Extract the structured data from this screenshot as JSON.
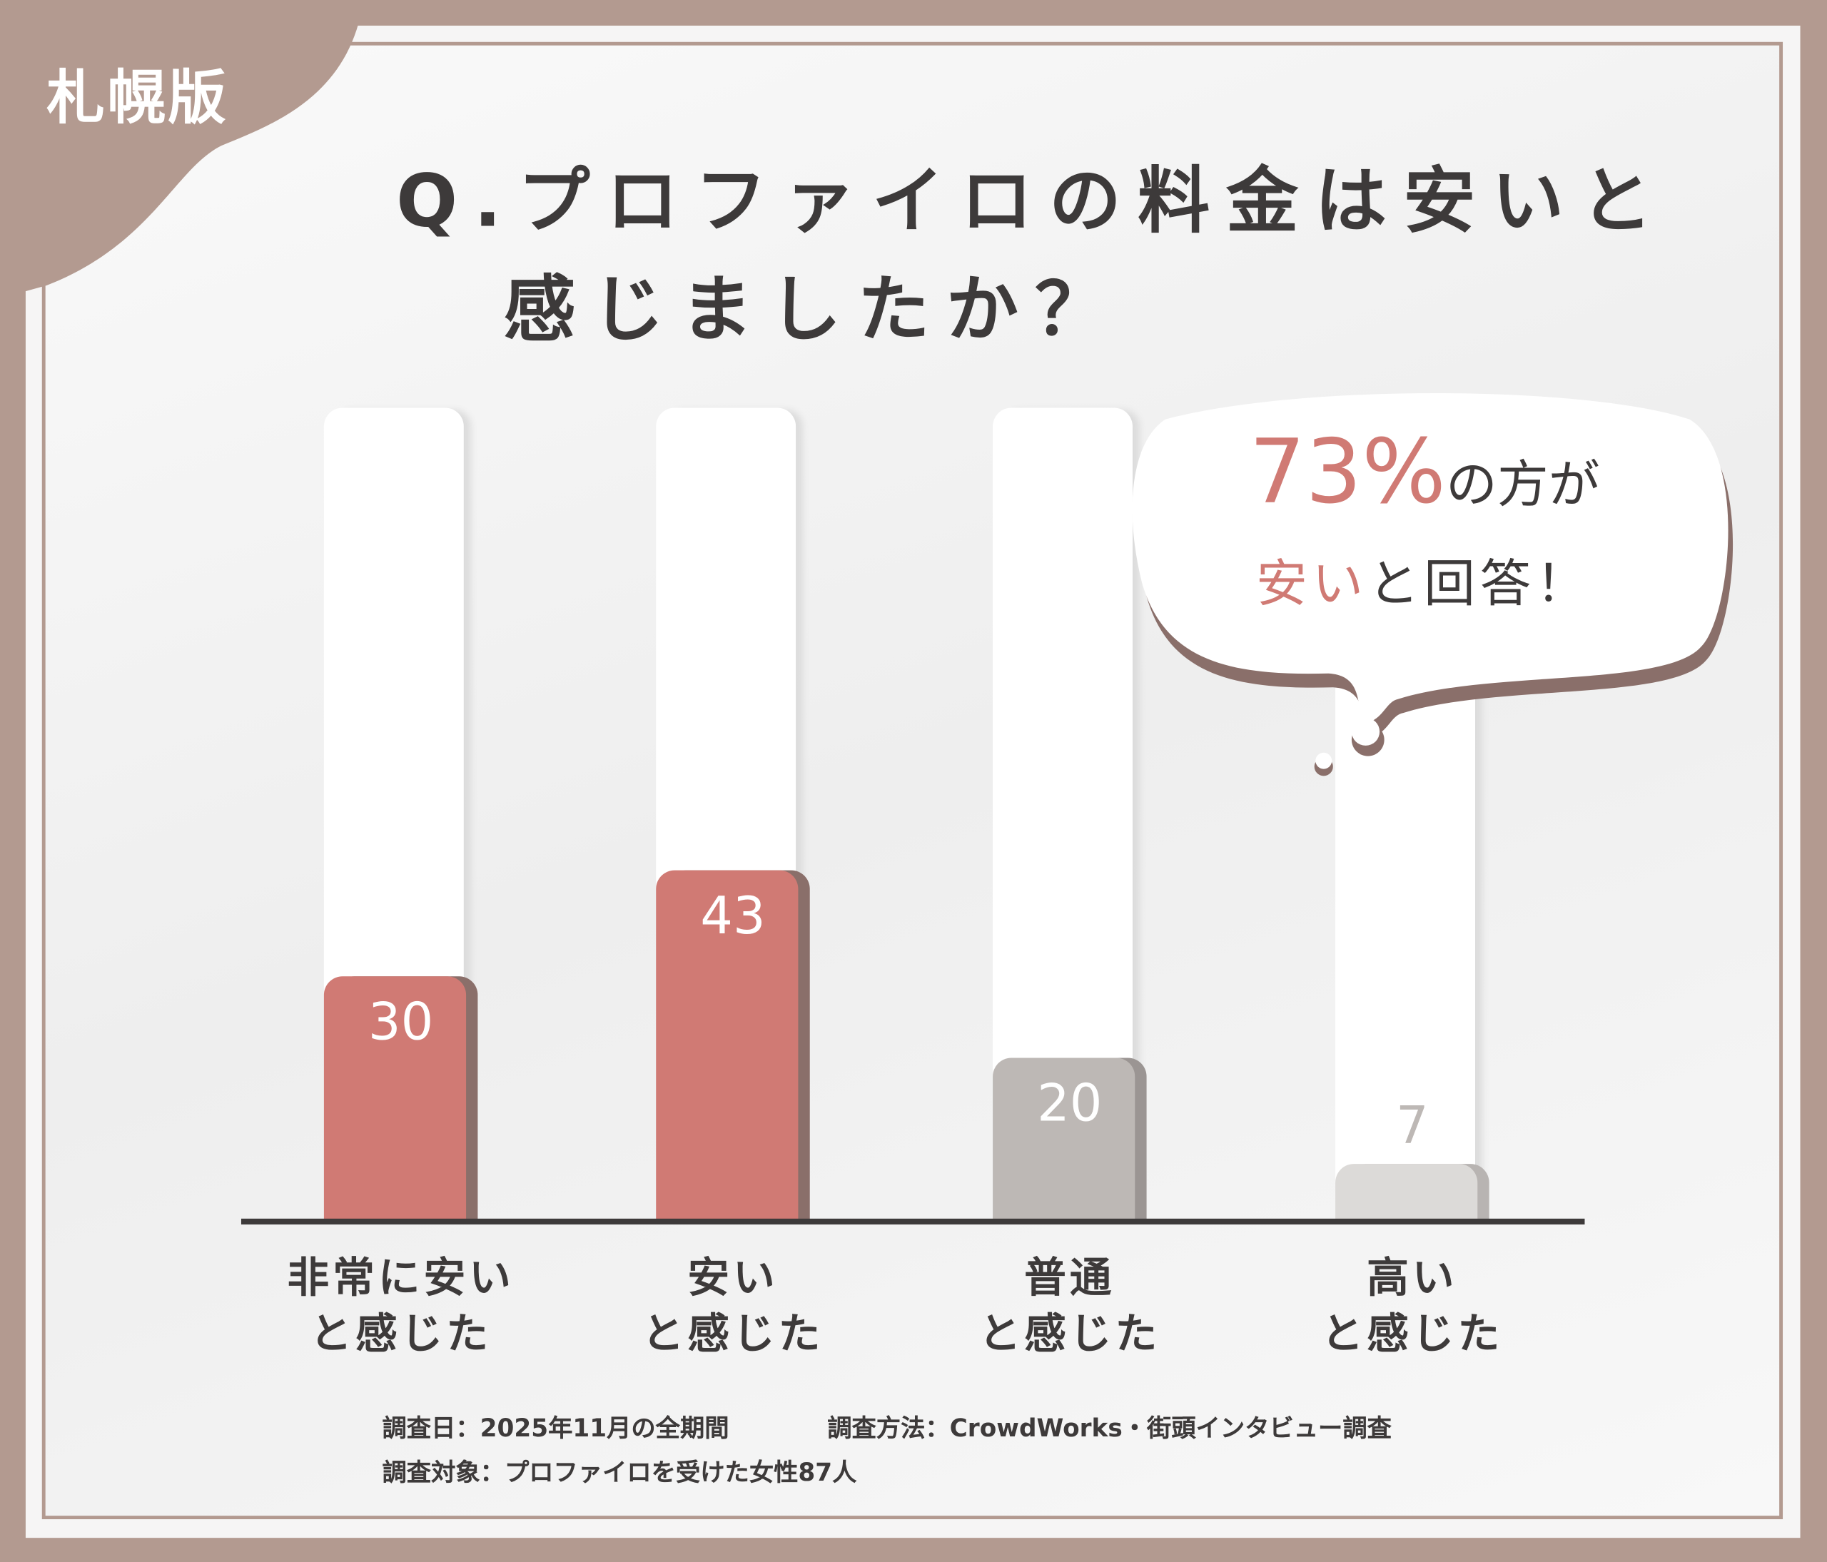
{
  "badge": "札幌版",
  "title_line1": "Q.プロファイロの料金は安いと",
  "title_line2": "感じましたか？",
  "chart_data": {
    "type": "bar",
    "categories": [
      "非常に安いと感じた",
      "安いと感じた",
      "普通と感じた",
      "高いと感じた"
    ],
    "category_lines": [
      [
        "非常に安い",
        "と感じた"
      ],
      [
        "安い",
        "と感じた"
      ],
      [
        "普通",
        "と感じた"
      ],
      [
        "高い",
        "と感じた"
      ]
    ],
    "values": [
      30,
      43,
      20,
      7
    ],
    "value_labels": [
      "30",
      "43",
      "20",
      "7"
    ],
    "colors": [
      "#d07a74",
      "#d07a74",
      "#bdb8b5",
      "#dcdad8"
    ],
    "label_colors": [
      "#ffffff",
      "#ffffff",
      "#ffffff",
      "#bdb8b5"
    ],
    "grid": false
  },
  "callout": {
    "percent": "73%",
    "line1_rest": "の方が",
    "highlight": "安い",
    "line2_rest": "と回答！"
  },
  "footer": {
    "date": "調査日：2025年11月の全期間",
    "method": "調査方法：CrowdWorks・街頭インタビュー調査",
    "target": "調査対象：プロファイロを受けた女性87人"
  }
}
